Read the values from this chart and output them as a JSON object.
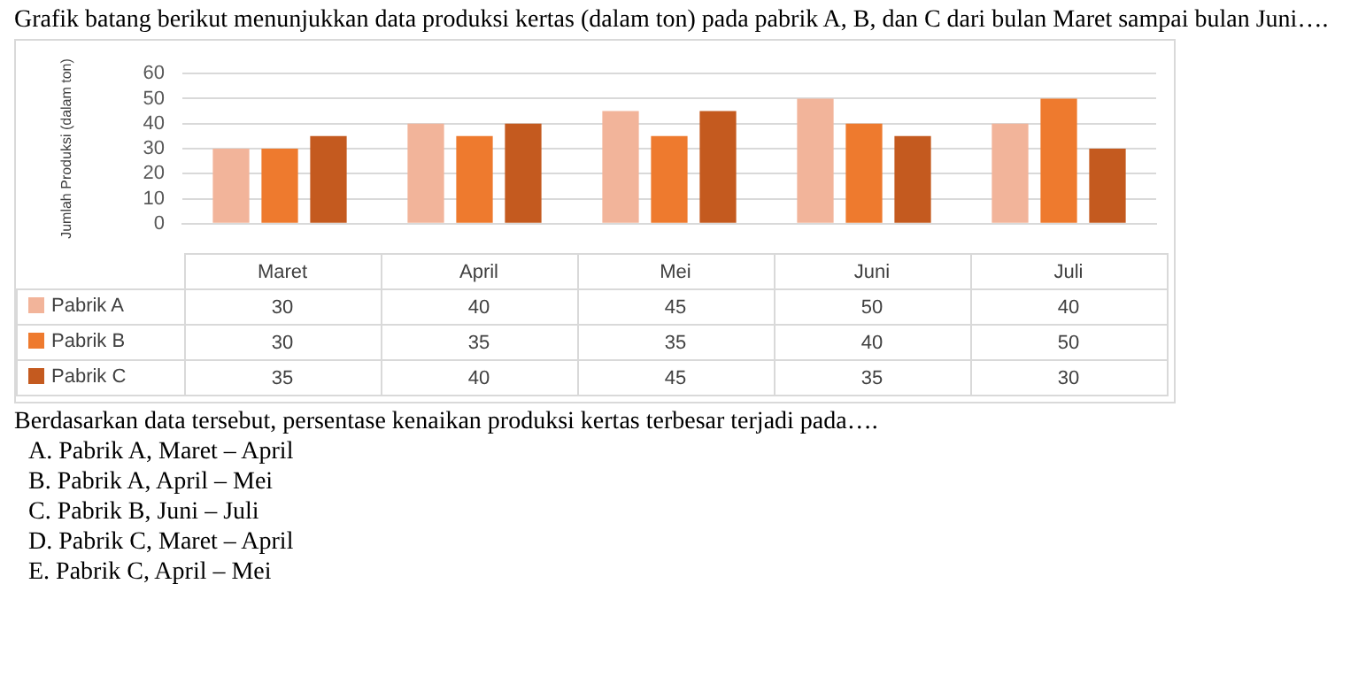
{
  "chart_data": {
    "type": "bar",
    "title": "Grafik batang berikut menunjukkan data produksi kertas (dalam ton) pada pabrik A, B, dan C dari bulan Maret sampai bulan Juni….",
    "ylabel": "Jumlah Produksi (dalam ton)",
    "categories": [
      "Maret",
      "April",
      "Mei",
      "Juni",
      "Juli"
    ],
    "series": [
      {
        "name": "Pabrik A",
        "color": "#f2b49a",
        "values": [
          30,
          40,
          45,
          50,
          40
        ]
      },
      {
        "name": "Pabrik B",
        "color": "#ee7a2e",
        "values": [
          30,
          35,
          35,
          40,
          50
        ]
      },
      {
        "name": "Pabrik C",
        "color": "#c45a1f",
        "values": [
          35,
          40,
          45,
          35,
          30
        ]
      }
    ],
    "ylim": [
      0,
      60
    ],
    "yticks": [
      0,
      10,
      20,
      30,
      40,
      50,
      60
    ],
    "grid": "y",
    "legend": "bottom",
    "data_labels": true,
    "annotations": [
      "Berdasarkan data tersebut, persentase kenaikan produksi kertas terbesar terjadi pada….",
      "A.  Pabrik A, Maret – April",
      "B.  Pabrik A, April – Mei",
      "C.  Pabrik B, Juni – Juli",
      "D.  Pabrik C, Maret – April",
      "E.  Pabrik C, April – Mei"
    ]
  }
}
